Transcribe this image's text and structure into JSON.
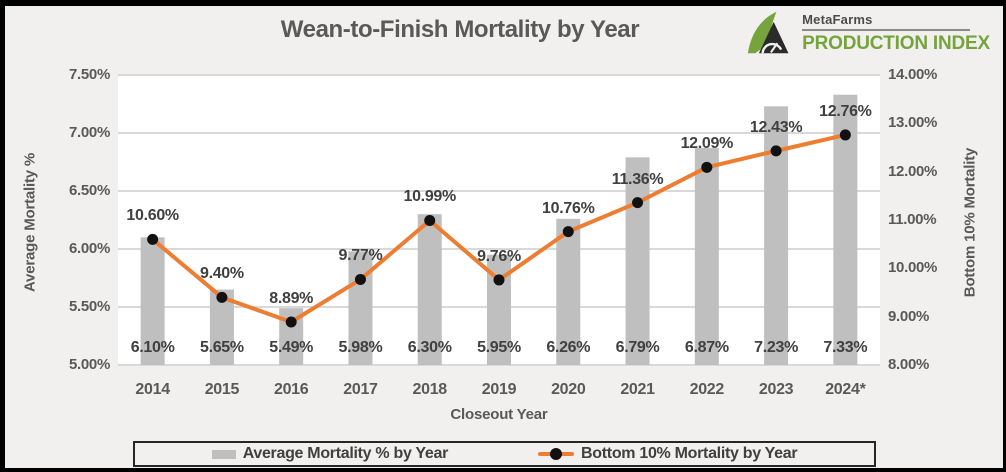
{
  "logo": {
    "brand": "MetaFarms",
    "product": "PRODUCTION INDEX"
  },
  "chart_data": {
    "type": "combo-bar-line",
    "title": "Wean-to-Finish Mortality by Year",
    "xlabel": "Closeout Year",
    "categories": [
      "2014",
      "2015",
      "2016",
      "2017",
      "2018",
      "2019",
      "2020",
      "2021",
      "2022",
      "2023",
      "2024*"
    ],
    "series": [
      {
        "name": "Average Mortality % by Year",
        "type": "bar",
        "axis": "left",
        "values": [
          6.1,
          5.65,
          5.49,
          5.98,
          6.3,
          5.95,
          6.26,
          6.79,
          6.87,
          7.23,
          7.33
        ],
        "labels": [
          "6.10%",
          "5.65%",
          "5.49%",
          "5.98%",
          "6.30%",
          "5.95%",
          "6.26%",
          "6.79%",
          "6.87%",
          "7.23%",
          "7.33%"
        ]
      },
      {
        "name": "Bottom 10% Mortality by Year",
        "type": "line",
        "axis": "right",
        "values": [
          10.6,
          9.4,
          8.89,
          9.77,
          10.99,
          9.76,
          10.76,
          11.36,
          12.09,
          12.43,
          12.76
        ],
        "labels": [
          "10.60%",
          "9.40%",
          "8.89%",
          "9.77%",
          "10.99%",
          "9.76%",
          "10.76%",
          "11.36%",
          "12.09%",
          "12.43%",
          "12.76%"
        ]
      }
    ],
    "left_axis": {
      "label": "Average Mortality %",
      "min": 5.0,
      "max": 7.5,
      "ticks": [
        "7.50%",
        "7.00%",
        "6.50%",
        "6.00%",
        "5.50%",
        "5.00%"
      ]
    },
    "right_axis": {
      "label": "Bottom 10% Mortality",
      "min": 8.0,
      "max": 14.0,
      "ticks": [
        "14.00%",
        "13.00%",
        "12.00%",
        "11.00%",
        "10.00%",
        "9.00%",
        "8.00%"
      ]
    },
    "grid": true,
    "legend_position": "bottom",
    "colors": {
      "bar": "#BFBFBF",
      "line": "#ED7D31",
      "marker": "#111111",
      "gridline": "#D9D9D9",
      "plot_background": "#FFFFFF",
      "chart_background": "#F1F0EE",
      "text": "#595959",
      "data_label": "#404040",
      "logo_green": "#76A33C",
      "logo_dark": "#2B2B2B"
    }
  }
}
